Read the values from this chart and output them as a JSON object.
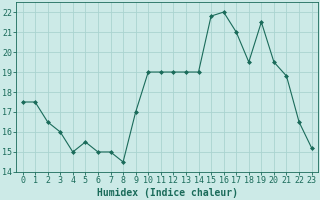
{
  "x": [
    0,
    1,
    2,
    3,
    4,
    5,
    6,
    7,
    8,
    9,
    10,
    11,
    12,
    13,
    14,
    15,
    16,
    17,
    18,
    19,
    20,
    21,
    22,
    23
  ],
  "y": [
    17.5,
    17.5,
    16.5,
    16.0,
    15.0,
    15.5,
    15.0,
    15.0,
    14.5,
    17.0,
    19.0,
    19.0,
    19.0,
    19.0,
    19.0,
    21.8,
    22.0,
    21.0,
    19.5,
    21.5,
    19.5,
    18.8,
    16.5,
    15.2
  ],
  "xlabel": "Humidex (Indice chaleur)",
  "line_color": "#1a6b5a",
  "marker": "D",
  "marker_size": 2,
  "background_color": "#cceae7",
  "grid_color": "#aad4d0",
  "xlim": [
    -0.5,
    23.5
  ],
  "ylim": [
    14,
    22.5
  ],
  "yticks": [
    14,
    15,
    16,
    17,
    18,
    19,
    20,
    21,
    22
  ],
  "xticks": [
    0,
    1,
    2,
    3,
    4,
    5,
    6,
    7,
    8,
    9,
    10,
    11,
    12,
    13,
    14,
    15,
    16,
    17,
    18,
    19,
    20,
    21,
    22,
    23
  ],
  "tick_color": "#1a6b5a",
  "font_color": "#1a6b5a",
  "xlabel_fontsize": 7,
  "tick_fontsize": 6,
  "ytick_fontsize": 6
}
